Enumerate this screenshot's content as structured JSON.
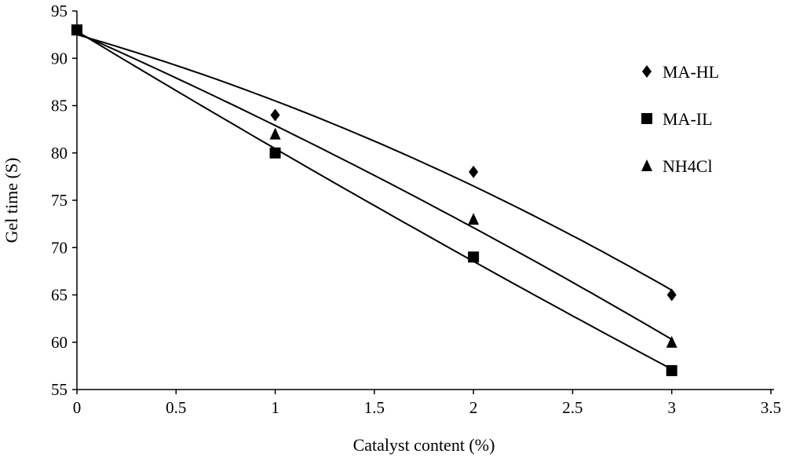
{
  "chart_data": {
    "type": "scatter",
    "title": "",
    "xlabel": "Catalyst content (%)",
    "ylabel": "Gel time (S)",
    "xlim": [
      0,
      3.5
    ],
    "ylim": [
      55,
      95
    ],
    "xticks": [
      "0",
      "0.5",
      "1",
      "1.5",
      "2",
      "2.5",
      "3",
      "3.5"
    ],
    "yticks": [
      "55",
      "60",
      "65",
      "70",
      "75",
      "80",
      "85",
      "90",
      "95"
    ],
    "grid": false,
    "legend_position": "top-right",
    "trendline": "polynomial order 2",
    "series": [
      {
        "name": "MA-HL",
        "marker": "diamond",
        "x": [
          0,
          1,
          2,
          3
        ],
        "y": [
          93,
          84,
          78,
          65
        ]
      },
      {
        "name": "MA-IL",
        "marker": "square",
        "x": [
          0,
          1,
          2,
          3
        ],
        "y": [
          93,
          80,
          69,
          57
        ]
      },
      {
        "name": "NH4Cl",
        "marker": "triangle",
        "x": [
          0,
          1,
          2,
          3
        ],
        "y": [
          93,
          82,
          73,
          60
        ]
      }
    ],
    "colors": {
      "ink": "#000000",
      "background": "#ffffff"
    }
  }
}
